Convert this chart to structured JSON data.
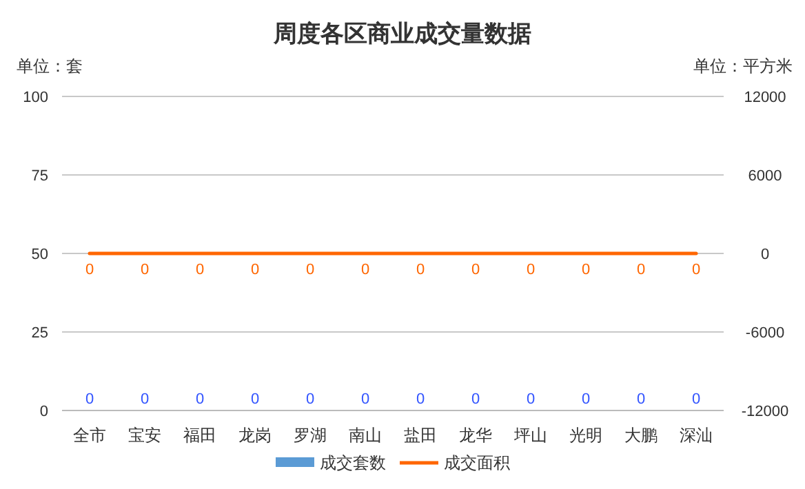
{
  "chart_data": {
    "type": "bar",
    "title": "周度各区商业成交量数据",
    "ylabel": "单位：套",
    "y2label": "单位：平方米",
    "categories": [
      "全市",
      "宝安",
      "福田",
      "龙岗",
      "罗湖",
      "南山",
      "盐田",
      "龙华",
      "坪山",
      "光明",
      "大鹏",
      "深汕"
    ],
    "series": [
      {
        "name": "成交套数",
        "color": "#5b9bd5",
        "values": [
          0,
          0,
          0,
          0,
          0,
          0,
          0,
          0,
          0,
          0,
          0,
          0
        ]
      },
      {
        "name": "成交面积",
        "type": "line",
        "axis": "y2",
        "color": "#ff6600",
        "values": [
          0,
          0,
          0,
          0,
          0,
          0,
          0,
          0,
          0,
          0,
          0,
          0
        ]
      }
    ],
    "ylim": [
      0,
      100
    ],
    "yticks": [
      0,
      25,
      50,
      75,
      100
    ],
    "y2lim": [
      -12000,
      12000
    ],
    "y2ticks": [
      -12000,
      -6000,
      0,
      6000,
      12000
    ],
    "grid": "y",
    "legend": "bottom",
    "data_labels": true
  }
}
